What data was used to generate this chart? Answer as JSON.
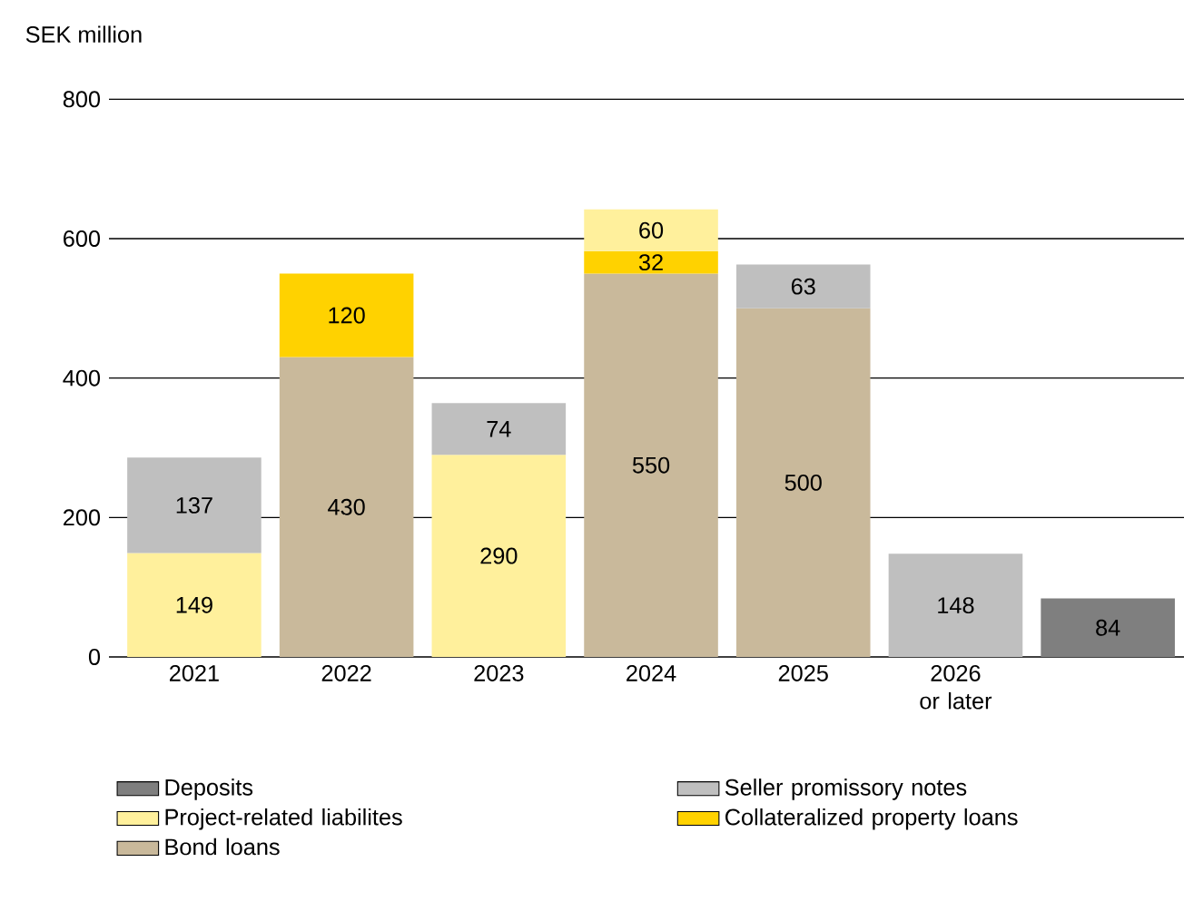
{
  "chart_data": {
    "type": "bar",
    "stacked": true,
    "ylabel": "SEK million",
    "categories": [
      "2021",
      "2022",
      "2023",
      "2024",
      "2025",
      "2026 or later",
      null
    ],
    "series": [
      {
        "name": "Bond loans",
        "color": "#c9b99b",
        "values": [
          null,
          430,
          null,
          550,
          500,
          null,
          null
        ]
      },
      {
        "name": "Collateralized property loans",
        "color": "#ffd200",
        "values": [
          null,
          120,
          null,
          32,
          null,
          null,
          null
        ]
      },
      {
        "name": "Project-related liabilites",
        "color": "#fff09c",
        "values": [
          149,
          null,
          290,
          60,
          null,
          null,
          null
        ]
      },
      {
        "name": "Seller promissory notes",
        "color": "#bfbfbf",
        "values": [
          137,
          null,
          74,
          null,
          63,
          148,
          null
        ]
      },
      {
        "name": "Deposits",
        "color": "#7f7f7f",
        "values": [
          null,
          null,
          null,
          null,
          null,
          null,
          84
        ]
      }
    ],
    "ylim": [
      0,
      800
    ],
    "yticks": [
      0,
      200,
      400,
      600,
      800
    ],
    "grid": "y",
    "legend": "bottom",
    "data_labels": true
  }
}
